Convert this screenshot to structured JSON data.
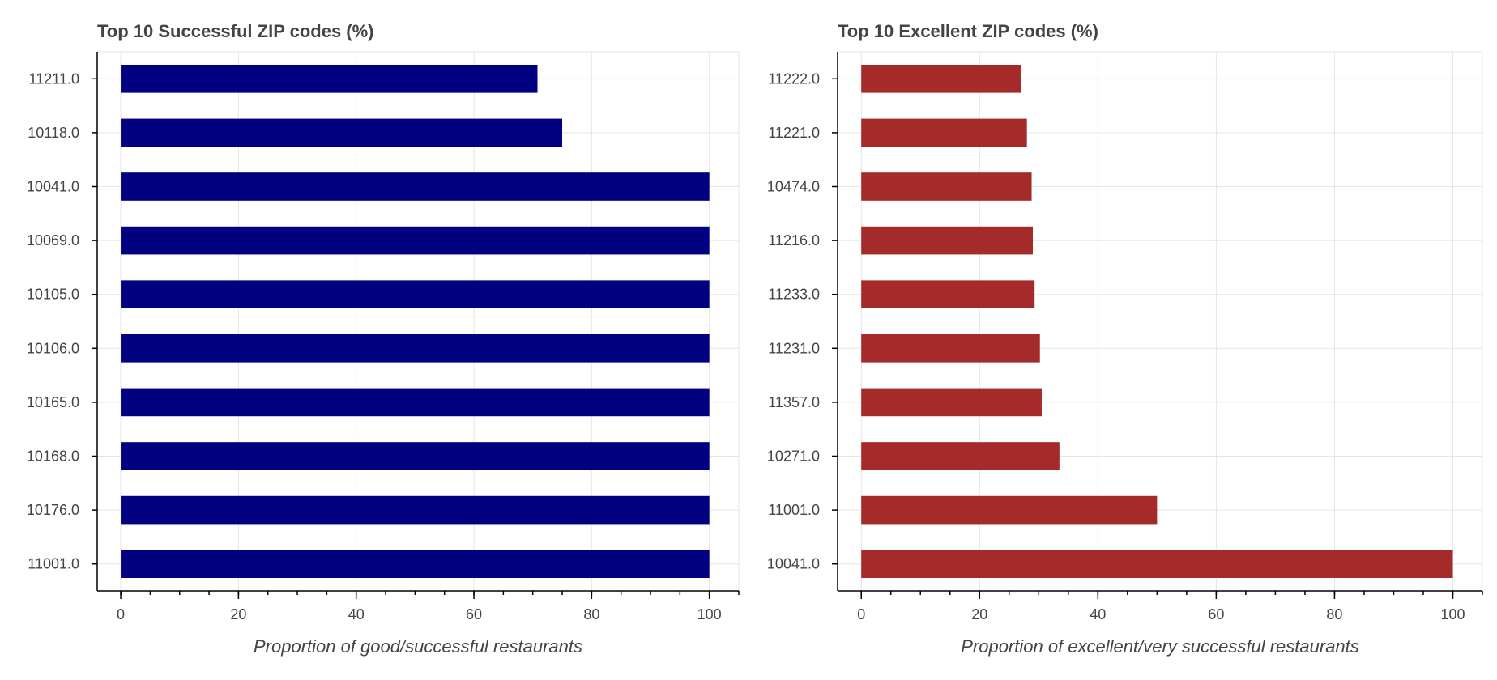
{
  "chart_data": [
    {
      "type": "bar",
      "orientation": "horizontal",
      "title": "Top 10 Successful ZIP codes (%)",
      "xlabel": "Proportion of good/successful restaurants",
      "ylabel": "",
      "categories": [
        "11211.0",
        "10118.0",
        "10041.0",
        "10069.0",
        "10105.0",
        "10106.0",
        "10165.0",
        "10168.0",
        "10176.0",
        "11001.0"
      ],
      "values": [
        70.8,
        75.0,
        100,
        100,
        100,
        100,
        100,
        100,
        100,
        100
      ],
      "xlim": [
        -4,
        105
      ],
      "xticks": [
        0,
        20,
        40,
        60,
        80,
        100
      ],
      "xtick_labels": [
        "0",
        "20",
        "40",
        "60",
        "80",
        "100"
      ],
      "minor_tick_step": 5,
      "bar_color": "#000080",
      "grid": true,
      "legend": "none"
    },
    {
      "type": "bar",
      "orientation": "horizontal",
      "title": "Top 10 Excellent ZIP codes (%)",
      "xlabel": "Proportion of excellent/very successful restaurants",
      "ylabel": "",
      "categories": [
        "11222.0",
        "11221.0",
        "10474.0",
        "11216.0",
        "11233.0",
        "11231.0",
        "11357.0",
        "10271.0",
        "11001.0",
        "10041.0"
      ],
      "values": [
        27.0,
        28.0,
        28.8,
        29.0,
        29.3,
        30.2,
        30.5,
        33.5,
        50.0,
        100
      ],
      "xlim": [
        -4,
        105
      ],
      "xticks": [
        0,
        20,
        40,
        60,
        80,
        100
      ],
      "xtick_labels": [
        "0",
        "20",
        "40",
        "60",
        "80",
        "100"
      ],
      "minor_tick_step": 5,
      "bar_color": "#a52a2a",
      "grid": true,
      "legend": "none"
    }
  ]
}
